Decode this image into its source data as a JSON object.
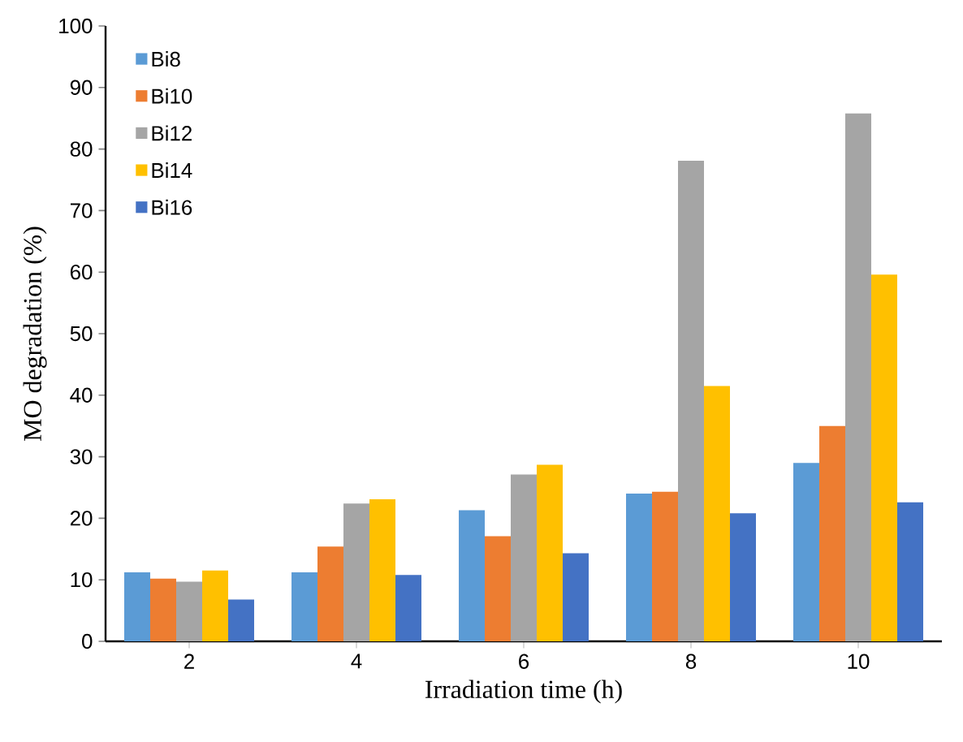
{
  "chart_data": {
    "type": "bar",
    "xlabel": "Irradiation time (h)",
    "ylabel": "MO degradation  (%)",
    "categories": [
      "2",
      "4",
      "6",
      "8",
      "10"
    ],
    "series": [
      {
        "name": "Bi8",
        "color": "#5b9bd5",
        "values": [
          11.2,
          11.2,
          21.3,
          24.0,
          29.0
        ]
      },
      {
        "name": "Bi10",
        "color": "#ed7d31",
        "values": [
          10.2,
          15.4,
          17.1,
          24.3,
          35.0
        ]
      },
      {
        "name": "Bi12",
        "color": "#a5a5a5",
        "values": [
          9.7,
          22.4,
          27.1,
          78.1,
          85.8
        ]
      },
      {
        "name": "Bi14",
        "color": "#ffc000",
        "values": [
          11.5,
          23.1,
          28.7,
          41.5,
          59.6
        ]
      },
      {
        "name": "Bi16",
        "color": "#4472c4",
        "values": [
          6.8,
          10.8,
          14.3,
          20.8,
          22.6
        ]
      }
    ],
    "ylim": [
      0,
      100
    ],
    "yticks": [
      0,
      10,
      20,
      30,
      40,
      50,
      60,
      70,
      80,
      90,
      100
    ],
    "grid": false,
    "legend": "top left"
  }
}
